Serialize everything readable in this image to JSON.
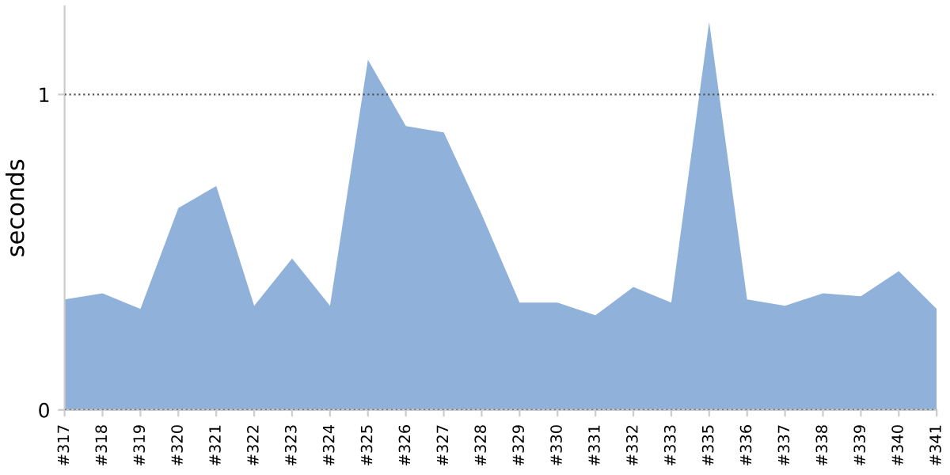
{
  "chart_data": {
    "type": "area",
    "ylabel": "seconds",
    "categories": [
      "#317",
      "#318",
      "#319",
      "#320",
      "#321",
      "#322",
      "#323",
      "#324",
      "#325",
      "#326",
      "#327",
      "#328",
      "#329",
      "#330",
      "#331",
      "#332",
      "#333",
      "#335",
      "#336",
      "#337",
      "#338",
      "#339",
      "#340",
      "#341"
    ],
    "series": [
      {
        "color": "#8fb1da",
        "values": [
          0.35,
          0.37,
          0.32,
          0.64,
          0.71,
          0.33,
          0.48,
          0.33,
          1.11,
          0.9,
          0.88,
          0.62,
          0.34,
          0.34,
          0.3,
          0.39,
          0.34,
          1.23,
          0.35,
          0.33,
          0.37,
          0.36,
          0.44,
          0.32
        ]
      }
    ],
    "ylim": [
      0,
      1.28
    ],
    "yticks": [
      0,
      1
    ],
    "grid": "y",
    "legend": false
  }
}
